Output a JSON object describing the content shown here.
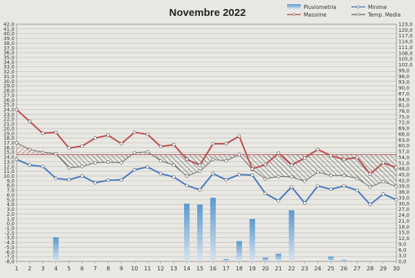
{
  "chart_data": {
    "type": "line",
    "title": "Novembre 2022",
    "x": [
      1,
      2,
      3,
      4,
      5,
      6,
      7,
      8,
      9,
      10,
      11,
      12,
      13,
      14,
      15,
      16,
      17,
      18,
      19,
      20,
      21,
      22,
      23,
      24,
      25,
      26,
      27,
      28,
      29,
      30
    ],
    "y_left_range": [
      -8.0,
      42.0
    ],
    "y_left_step": 1.0,
    "y_right_range": [
      0.0,
      123.0
    ],
    "y_right_step": 3.0,
    "grid": true,
    "legend_position": "top-right",
    "legend": [
      "Pluviometria",
      "Minime",
      "Massime",
      "Temp. Media"
    ],
    "colors": {
      "pluviometria": "#5c9bc9",
      "minime": "#4a7cc6",
      "massime": "#c0504d",
      "media": "#6e6e6e",
      "hatch_above": "#cc4b4b",
      "hatch_below": "#333333"
    },
    "series": [
      {
        "name": "Massime",
        "axis": "left",
        "values": [
          24.0,
          21.5,
          19.0,
          19.2,
          15.9,
          16.3,
          18.0,
          18.6,
          16.8,
          19.2,
          18.8,
          16.2,
          16.6,
          13.5,
          12.3,
          16.8,
          16.8,
          18.4,
          11.5,
          12.4,
          14.8,
          12.3,
          13.8,
          15.6,
          14.3,
          13.5,
          13.9,
          10.4,
          12.8,
          11.8
        ]
      },
      {
        "name": "Minime",
        "axis": "left",
        "values": [
          13.5,
          12.3,
          12.0,
          9.5,
          9.2,
          10.0,
          8.6,
          9.1,
          9.2,
          11.3,
          11.9,
          10.5,
          9.8,
          8.0,
          7.1,
          10.5,
          9.2,
          10.3,
          10.2,
          6.3,
          4.8,
          7.7,
          4.3,
          7.9,
          7.2,
          7.9,
          7.0,
          4.0,
          6.2,
          5.0
        ]
      },
      {
        "name": "Temp. Media",
        "axis": "left",
        "values": [
          17.0,
          15.6,
          15.0,
          14.7,
          11.7,
          12.0,
          12.8,
          12.9,
          12.8,
          14.9,
          15.1,
          13.2,
          12.3,
          10.0,
          11.0,
          13.5,
          13.2,
          14.5,
          11.4,
          9.4,
          9.9,
          9.8,
          8.9,
          10.8,
          10.1,
          10.1,
          9.5,
          7.7,
          8.8,
          7.8
        ]
      },
      {
        "name": "Pluviometria",
        "axis": "right",
        "values": [
          0,
          0,
          0,
          0,
          0,
          0,
          0,
          0,
          0,
          0,
          0,
          0,
          0,
          0,
          0,
          0,
          0,
          0,
          0,
          0,
          0,
          0,
          0,
          0,
          0,
          0,
          0,
          0,
          0,
          0
        ]
      }
    ],
    "rain_values": [
      0,
      0,
      0,
      12.5,
      0.3,
      0,
      0,
      0,
      0,
      0,
      0,
      0,
      0,
      30.0,
      29.5,
      33.0,
      1.2,
      10.5,
      22.0,
      2.0,
      4.0,
      26.5,
      0,
      0,
      2.5,
      0.8,
      0,
      0,
      0,
      0
    ],
    "reference_line": 14.5
  }
}
